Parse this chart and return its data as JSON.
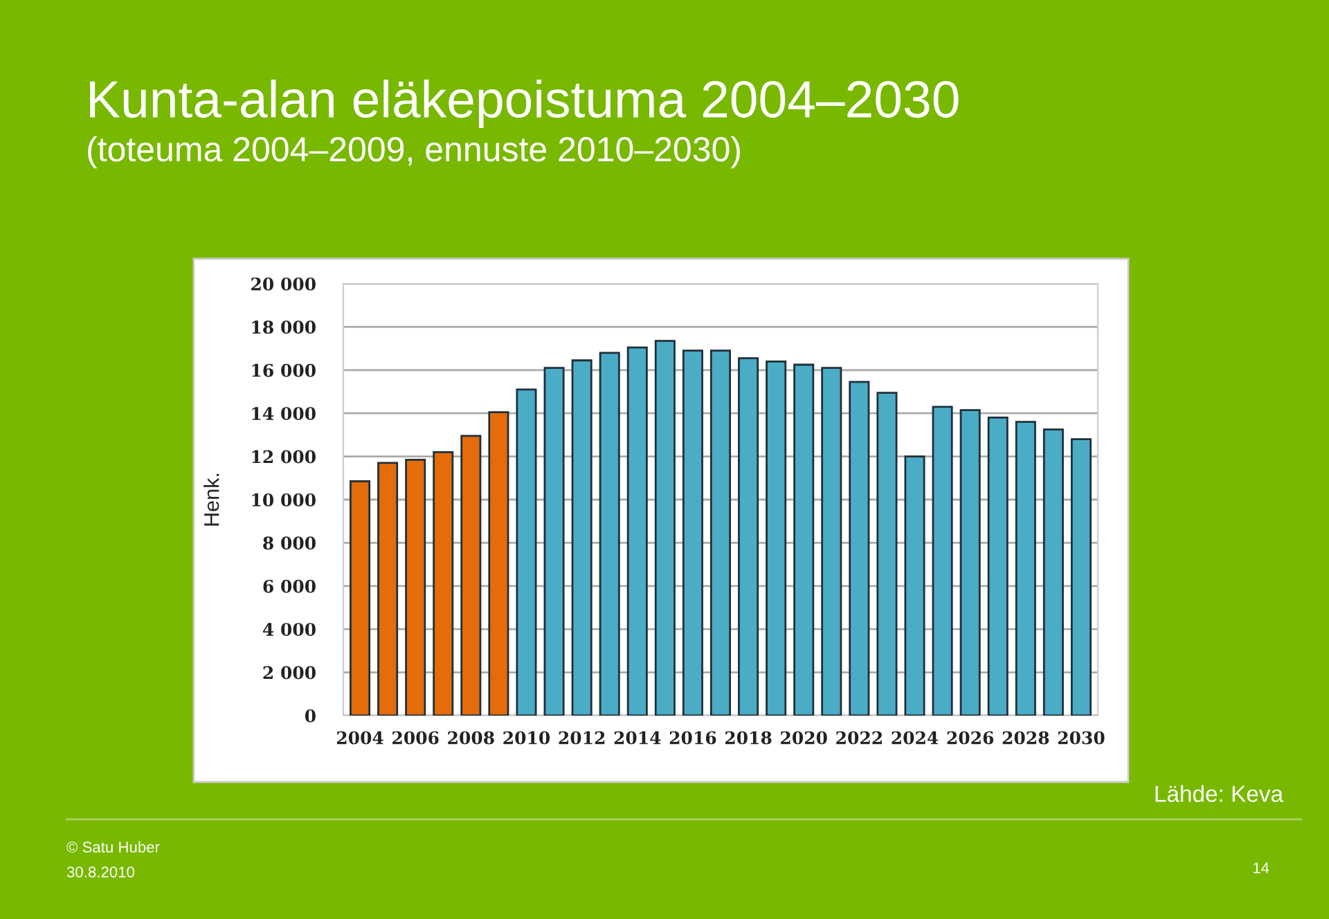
{
  "chart_data": {
    "type": "bar",
    "title": "Kunta-alan eläkepoistuma 2004–2030",
    "subtitle": "(toteuma 2004–2009, ennuste 2010–2030)",
    "ylabel": "Henk.",
    "categories": [
      "2004",
      null,
      "2006",
      null,
      "2008",
      null,
      "2010",
      null,
      "2012",
      null,
      "2014",
      null,
      "2016",
      null,
      "2018",
      null,
      "2020",
      null,
      "2022",
      null,
      "2024",
      null,
      "2026",
      null,
      "2028",
      null,
      "2030"
    ],
    "values": [
      10850,
      11700,
      11850,
      12200,
      12950,
      14050,
      15100,
      16100,
      16450,
      16800,
      17050,
      17350,
      16900,
      16900,
      16550,
      16400,
      16250,
      16100,
      15450,
      14950,
      12000,
      14300,
      14150,
      13800,
      13600,
      13250,
      12800
    ],
    "colors": [
      "#e46c0a",
      "#e46c0a",
      "#e46c0a",
      "#e46c0a",
      "#e46c0a",
      "#e46c0a",
      "#4bacc6",
      "#4bacc6",
      "#4bacc6",
      "#4bacc6",
      "#4bacc6",
      "#4bacc6",
      "#4bacc6",
      "#4bacc6",
      "#4bacc6",
      "#4bacc6",
      "#4bacc6",
      "#4bacc6",
      "#4bacc6",
      "#4bacc6",
      "#4bacc6",
      "#4bacc6",
      "#4bacc6",
      "#4bacc6",
      "#4bacc6",
      "#4bacc6",
      "#4bacc6"
    ],
    "ylim": [
      0,
      20000
    ],
    "yticks": [
      {
        "value": 0,
        "label": "0"
      },
      {
        "value": 2000,
        "label": "2 000"
      },
      {
        "value": 4000,
        "label": "4 000"
      },
      {
        "value": 6000,
        "label": "6 000"
      },
      {
        "value": 8000,
        "label": "8 000"
      },
      {
        "value": 10000,
        "label": "10 000"
      },
      {
        "value": 12000,
        "label": "12 000"
      },
      {
        "value": 14000,
        "label": "14 000"
      },
      {
        "value": 16000,
        "label": "16 000"
      },
      {
        "value": 18000,
        "label": "18 000"
      },
      {
        "value": 20000,
        "label": "20 000"
      }
    ],
    "grid": "y",
    "annotations": [
      "Lähde: Keva",
      "© Satu Huber",
      "30.8.2010",
      "14"
    ]
  }
}
